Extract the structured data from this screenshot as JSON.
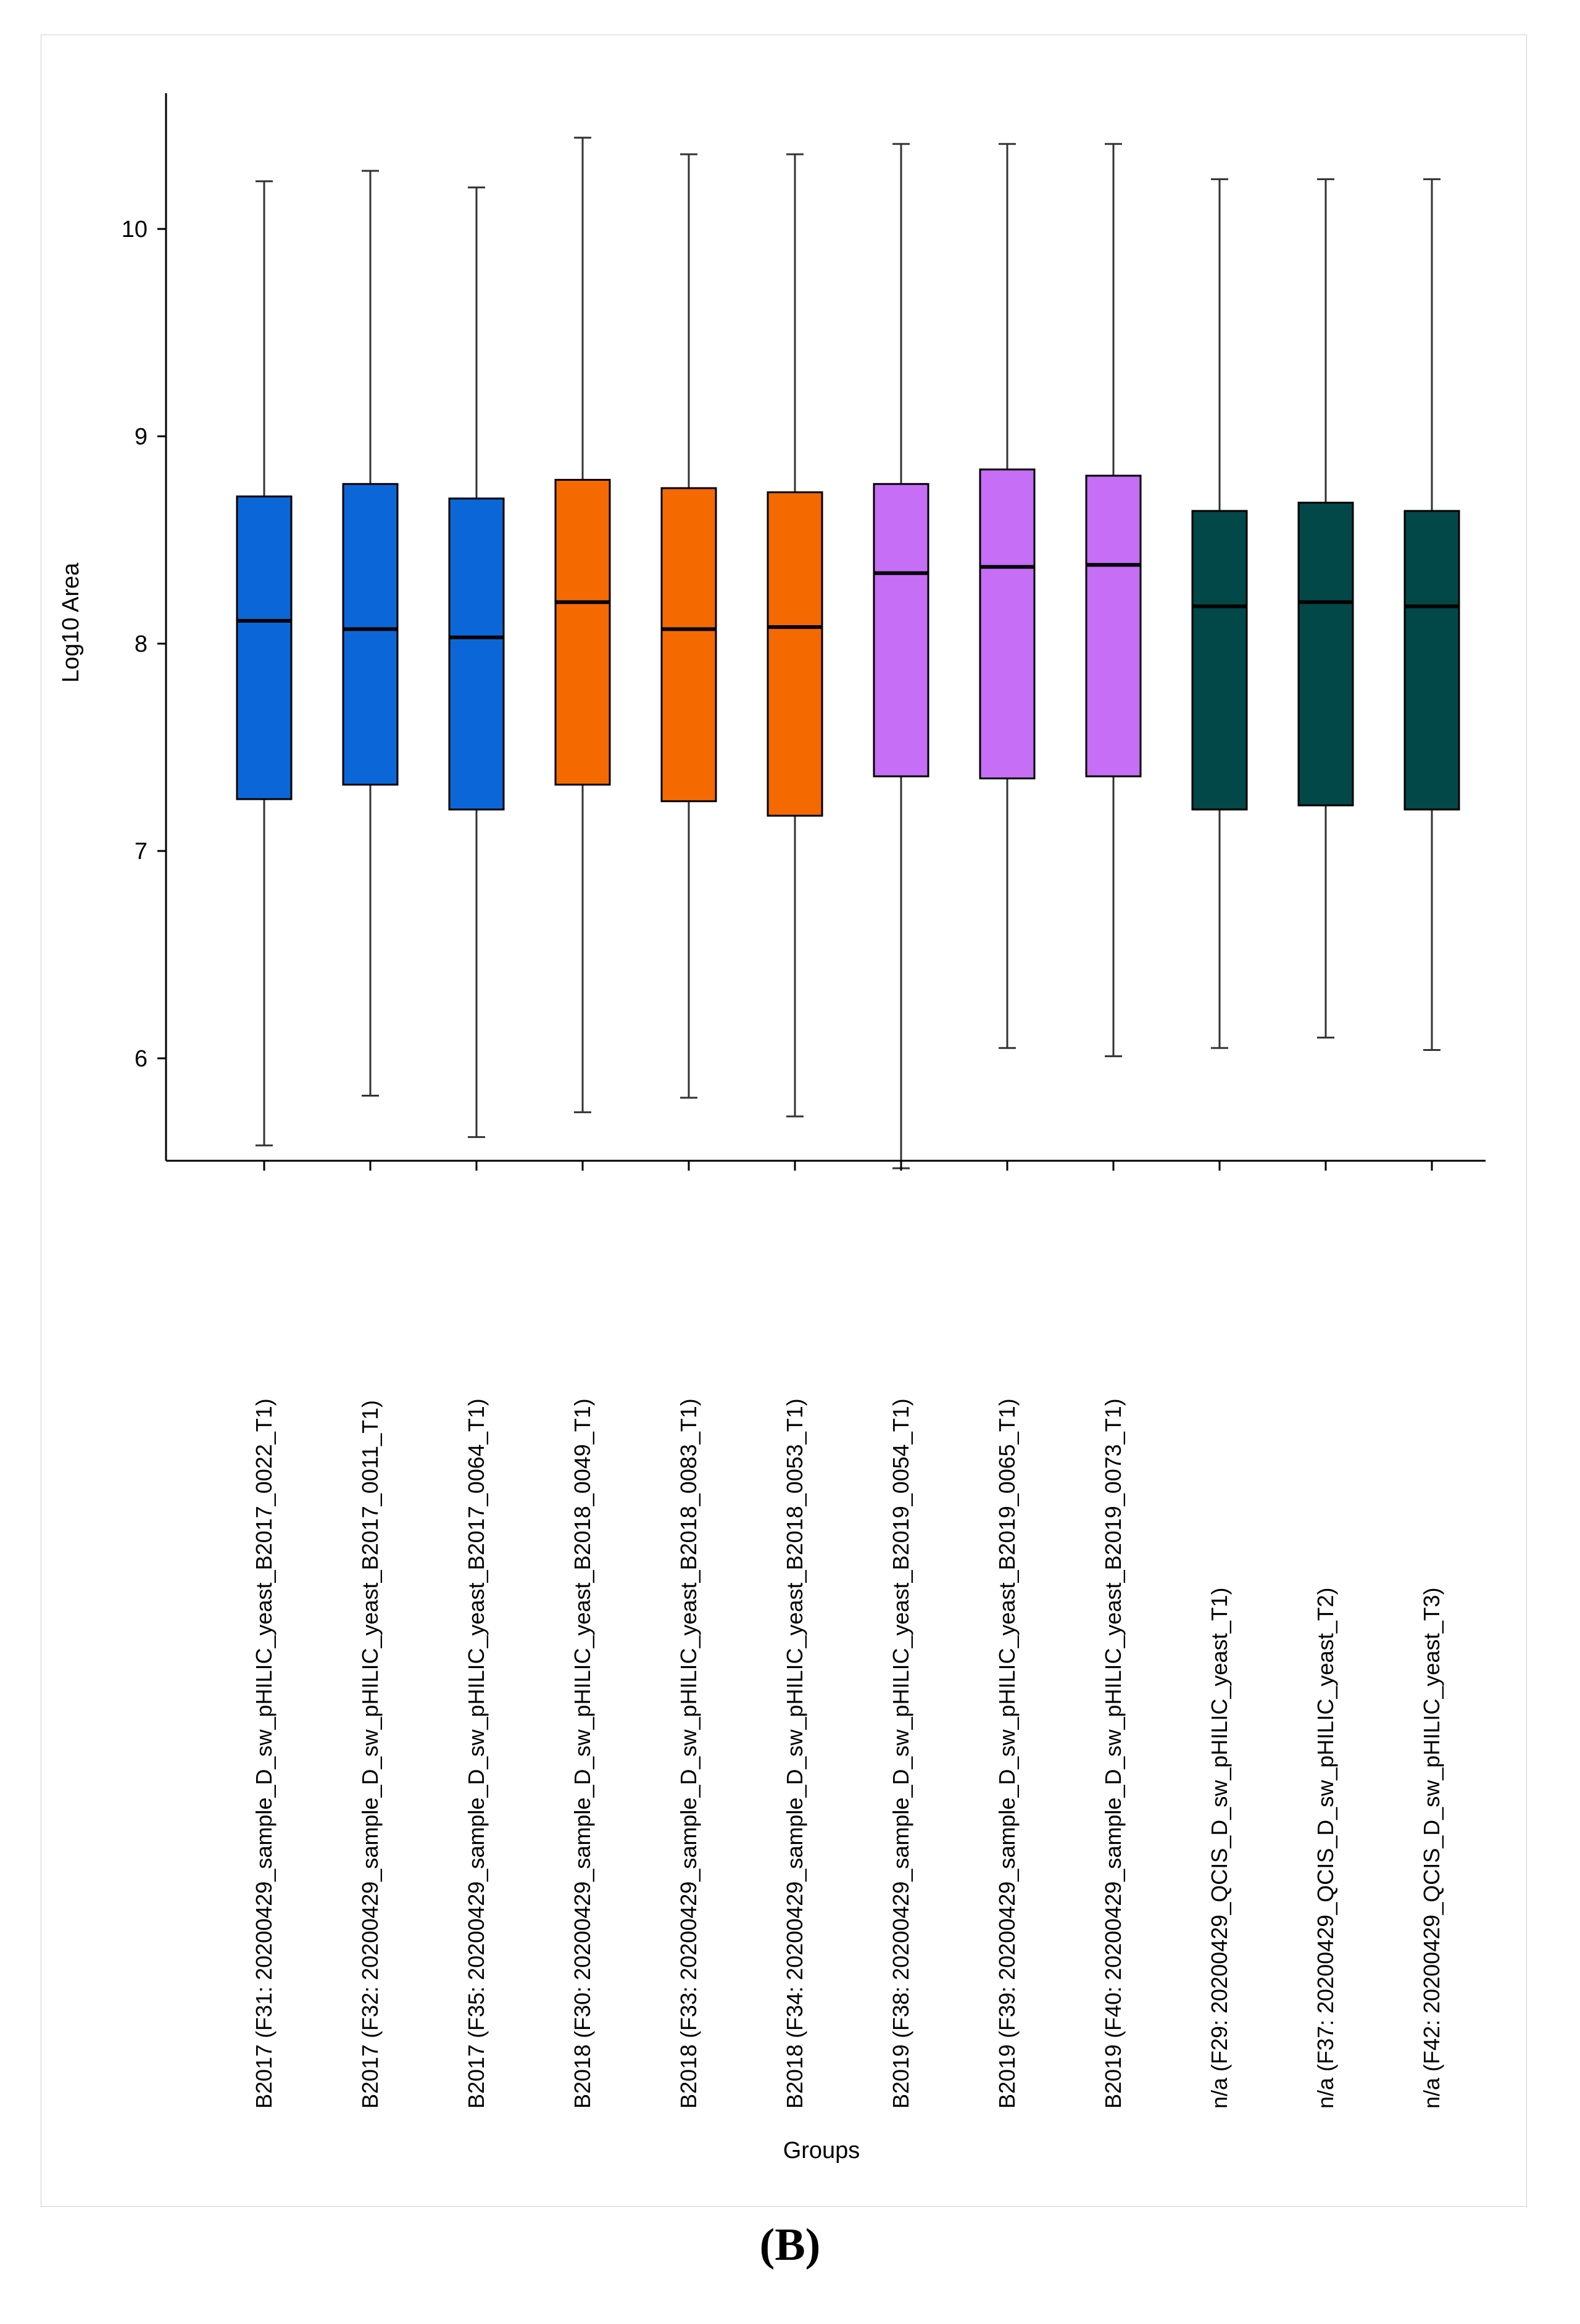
{
  "panel_label": "(B)",
  "chart_data": {
    "type": "boxplot",
    "xlabel": "Groups",
    "ylabel": "Log10 Area",
    "ylim": [
      5.4,
      10.5
    ],
    "yticks": [
      "6",
      "7",
      "8",
      "9",
      "10"
    ],
    "grid": false,
    "legend": "none",
    "categories": [
      "B2017 (F31: 20200429_sample_D_sw_pHILIC_yeast_B2017_0022_T1)",
      "B2017 (F32: 20200429_sample_D_sw_pHILIC_yeast_B2017_0011_T1)",
      "B2017 (F35: 20200429_sample_D_sw_pHILIC_yeast_B2017_0064_T1)",
      "B2018 (F30: 20200429_sample_D_sw_pHILIC_yeast_B2018_0049_T1)",
      "B2018 (F33: 20200429_sample_D_sw_pHILIC_yeast_B2018_0083_T1)",
      "B2018 (F34: 20200429_sample_D_sw_pHILIC_yeast_B2018_0053_T1)",
      "B2019 (F38: 20200429_sample_D_sw_pHILIC_yeast_B2019_0054_T1)",
      "B2019 (F39: 20200429_sample_D_sw_pHILIC_yeast_B2019_0065_T1)",
      "B2019 (F40: 20200429_sample_D_sw_pHILIC_yeast_B2019_0073_T1)",
      "n/a (F29: 20200429_QCIS_D_sw_pHILIC_yeast_T1)",
      "n/a (F37: 20200429_QCIS_D_sw_pHILIC_yeast_T2)",
      "n/a (F42: 20200429_QCIS_D_sw_pHILIC_yeast_T3)"
    ],
    "boxes": [
      {
        "min": 5.58,
        "q1": 7.25,
        "median": 8.11,
        "q3": 8.71,
        "max": 10.23,
        "color": "#0b67d8"
      },
      {
        "min": 5.82,
        "q1": 7.32,
        "median": 8.07,
        "q3": 8.77,
        "max": 10.28,
        "color": "#0b67d8"
      },
      {
        "min": 5.62,
        "q1": 7.2,
        "median": 8.03,
        "q3": 8.7,
        "max": 10.2,
        "color": "#0b67d8"
      },
      {
        "min": 5.74,
        "q1": 7.32,
        "median": 8.2,
        "q3": 8.79,
        "max": 10.44,
        "color": "#f56a00"
      },
      {
        "min": 5.81,
        "q1": 7.24,
        "median": 8.07,
        "q3": 8.75,
        "max": 10.36,
        "color": "#f56a00"
      },
      {
        "min": 5.72,
        "q1": 7.17,
        "median": 8.08,
        "q3": 8.73,
        "max": 10.36,
        "color": "#f56a00"
      },
      {
        "min": 5.47,
        "q1": 7.36,
        "median": 8.34,
        "q3": 8.77,
        "max": 10.41,
        "color": "#c66ef5"
      },
      {
        "min": 6.05,
        "q1": 7.35,
        "median": 8.37,
        "q3": 8.84,
        "max": 10.41,
        "color": "#c66ef5"
      },
      {
        "min": 6.01,
        "q1": 7.36,
        "median": 8.38,
        "q3": 8.81,
        "max": 10.41,
        "color": "#c66ef5"
      },
      {
        "min": 6.05,
        "q1": 7.2,
        "median": 8.18,
        "q3": 8.64,
        "max": 10.24,
        "color": "#024848"
      },
      {
        "min": 6.1,
        "q1": 7.22,
        "median": 8.2,
        "q3": 8.68,
        "max": 10.24,
        "color": "#024848"
      },
      {
        "min": 6.04,
        "q1": 7.2,
        "median": 8.18,
        "q3": 8.64,
        "max": 10.24,
        "color": "#024848"
      }
    ]
  }
}
